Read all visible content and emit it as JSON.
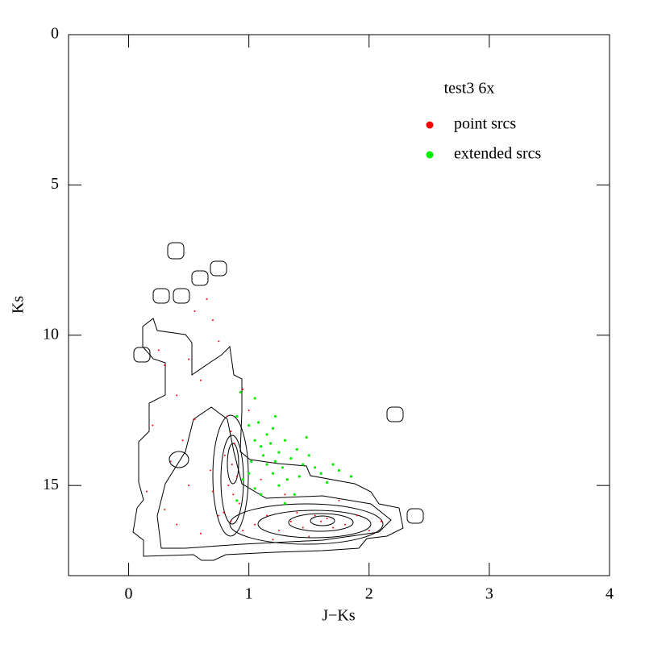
{
  "chart_data": {
    "type": "scatter",
    "xlabel": "J−Ks",
    "ylabel": "Ks",
    "legend_title": "test3 6x",
    "xlim": [
      -0.5,
      4
    ],
    "ylim": [
      0,
      18
    ],
    "y_inverted": true,
    "xticks": [
      0,
      1,
      2,
      3,
      4
    ],
    "yticks": [
      0,
      5,
      10,
      15
    ],
    "series": [
      {
        "name": "point srcs",
        "color": "#ff0000",
        "x": [
          0.82,
          0.85,
          0.88,
          0.8,
          0.86,
          0.9,
          0.83,
          0.87,
          0.92,
          0.79,
          0.85,
          0.95,
          0.75,
          0.7,
          0.68,
          1.05,
          1.15,
          1.25,
          1.35,
          1.45,
          1.55,
          1.6,
          1.65,
          1.7,
          1.8,
          1.9,
          2.0,
          2.1,
          1.4,
          1.5,
          1.2,
          0.6,
          0.4,
          0.3,
          0.35,
          0.45,
          0.55,
          0.4,
          0.3,
          0.5,
          0.6,
          0.7,
          0.75,
          0.25,
          0.55,
          0.65,
          0.2,
          0.15,
          1.0,
          1.1,
          1.3,
          1.75,
          0.95,
          0.5
        ],
        "values": [
          12.7,
          13.2,
          13.6,
          14.0,
          14.3,
          14.7,
          15.0,
          15.3,
          15.6,
          15.9,
          16.2,
          16.5,
          16.0,
          15.2,
          14.5,
          16.3,
          16.0,
          16.5,
          16.2,
          16.4,
          16.0,
          16.2,
          16.1,
          16.4,
          16.3,
          16.0,
          16.5,
          16.2,
          15.9,
          16.7,
          16.8,
          16.6,
          16.3,
          15.8,
          14.2,
          13.5,
          12.8,
          12.0,
          11.0,
          10.8,
          11.5,
          9.5,
          10.2,
          10.5,
          9.2,
          8.8,
          13.0,
          15.2,
          12.5,
          14.8,
          15.3,
          15.5,
          11.8,
          15.0
        ]
      },
      {
        "name": "extended srcs",
        "color": "#00ee00",
        "x": [
          0.93,
          1.05,
          0.9,
          1.0,
          1.08,
          1.15,
          1.2,
          1.22,
          1.05,
          1.1,
          1.18,
          1.25,
          1.3,
          1.12,
          1.02,
          1.15,
          1.28,
          1.35,
          1.4,
          1.45,
          1.5,
          1.55,
          1.2,
          1.32,
          1.42,
          1.6,
          1.7,
          1.75,
          1.85,
          1.48,
          0.95,
          1.05,
          1.25,
          1.38,
          1.3,
          0.9,
          1.0,
          1.1,
          1.65,
          1.22
        ],
        "values": [
          11.9,
          12.1,
          12.7,
          13.0,
          12.9,
          13.3,
          13.1,
          12.7,
          13.5,
          13.7,
          13.6,
          13.9,
          13.5,
          14.0,
          14.2,
          14.3,
          14.4,
          14.1,
          13.8,
          14.3,
          14.0,
          14.4,
          14.6,
          14.8,
          14.7,
          14.6,
          14.3,
          14.5,
          14.7,
          13.4,
          14.8,
          15.1,
          15.0,
          15.3,
          15.6,
          15.5,
          14.6,
          15.3,
          14.9,
          14.2
        ]
      }
    ]
  }
}
